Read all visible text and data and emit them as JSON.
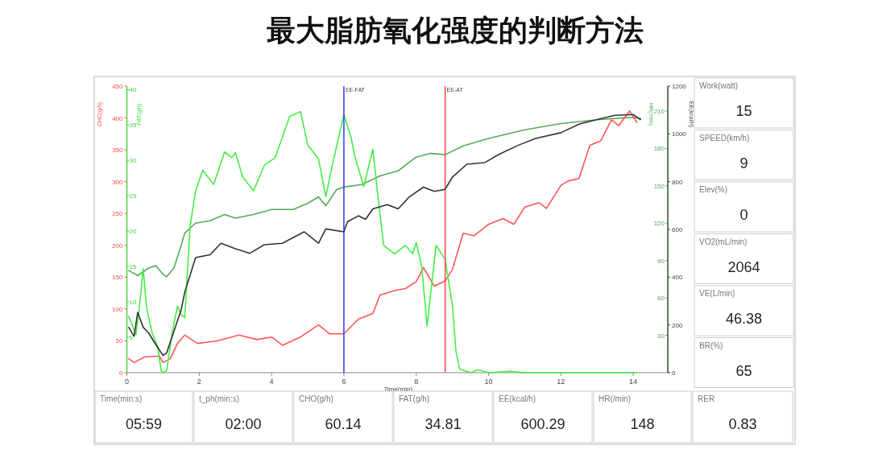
{
  "chart_data": [
    {
      "type": "line",
      "title": "最大脂肪氧化强度的判断方法",
      "xlabel": "Time(min)",
      "ylabel": "CHO(g/h)",
      "y2label": "FAT(g/h)",
      "y3label": "HR(/min)",
      "xlim": [
        0,
        15
      ],
      "xticks": [
        0,
        2,
        4,
        6,
        8,
        10,
        12,
        14
      ],
      "ylim": [
        0,
        450
      ],
      "yticks": [
        0,
        50,
        100,
        150,
        200,
        250,
        300,
        350,
        400,
        450
      ],
      "y2lim": [
        0,
        40.5
      ],
      "y2ticks": [
        5,
        10,
        15,
        20,
        25,
        30,
        35,
        40
      ],
      "y3lim": [
        0,
        230
      ],
      "y3ticks": [
        30,
        60,
        90,
        120,
        150,
        180,
        210
      ],
      "grid": false,
      "marker": "none",
      "line_style": "solid",
      "ref_lines": [
        {
          "axis": "x",
          "value": 6,
          "label": "EE-FAT",
          "color": "#3333ff"
        },
        {
          "axis": "x",
          "value": 8.8,
          "label": "EE-AT",
          "color": "#ff4444"
        }
      ],
      "series": [
        {
          "color": "#55aa55",
          "axis": "y3",
          "x": [
            0.05,
            0.3,
            0.6,
            0.8,
            1.0,
            1.1,
            1.3,
            1.5,
            1.6,
            1.9,
            2.3,
            2.7,
            3.0,
            3.5,
            4.0,
            4.6,
            5.0,
            5.3,
            5.5,
            5.8,
            6.0,
            6.5,
            7.0,
            7.5,
            8.0,
            8.4,
            8.8,
            9.3,
            10,
            11,
            12,
            13,
            14,
            14.2
          ],
          "values": [
            82,
            78,
            84,
            86,
            79,
            77,
            84,
            102,
            112,
            120,
            122,
            127,
            124,
            127,
            131,
            131,
            136,
            141,
            134,
            147,
            149,
            151,
            158,
            162,
            173,
            176,
            175,
            182,
            188,
            195,
            200,
            203,
            205,
            204
          ]
        },
        {
          "color": "#ff5555",
          "x": [
            0.05,
            0.2,
            0.5,
            0.9,
            1.0,
            1.2,
            1.4,
            1.6,
            1.95,
            2.5,
            3.1,
            3.6,
            4.0,
            4.3,
            4.8,
            5.3,
            5.6,
            6.0,
            6.4,
            6.8,
            7.0,
            7.4,
            7.7,
            8.0,
            8.2,
            8.5,
            8.8,
            9.0,
            9.3,
            9.6,
            10.0,
            10.4,
            10.7,
            11.0,
            11.4,
            11.6,
            12.0,
            12.2,
            12.5,
            12.8,
            13.1,
            13.4,
            13.6,
            13.9,
            14.1
          ],
          "values": [
            22,
            16,
            25,
            26,
            16,
            22,
            46,
            59,
            46,
            50,
            59,
            52,
            56,
            43,
            56,
            75,
            61,
            61,
            84,
            93,
            122,
            129,
            132,
            143,
            165,
            136,
            144,
            162,
            219,
            215,
            233,
            242,
            233,
            260,
            267,
            258,
            294,
            301,
            305,
            357,
            364,
            397,
            388,
            411,
            393
          ]
        },
        {
          "color": "#44ee44",
          "axis": "y2",
          "x": [
            0.05,
            0.25,
            0.35,
            0.45,
            0.55,
            0.7,
            0.85,
            0.95,
            1.0,
            1.1,
            1.25,
            1.4,
            1.5,
            1.6,
            1.75,
            1.9,
            2.1,
            2.4,
            2.7,
            2.9,
            3.0,
            3.2,
            3.5,
            3.8,
            4.1,
            4.5,
            4.8,
            5.0,
            5.3,
            5.5,
            5.7,
            6.0,
            6.2,
            6.3,
            6.55,
            6.8,
            6.95,
            7.1,
            7.4,
            7.7,
            7.9,
            8.0,
            8.15,
            8.3,
            8.55,
            8.8,
            9.0,
            9.1,
            9.2,
            9.5,
            9.7,
            10,
            10.6,
            11,
            14.1
          ],
          "values": [
            8.0,
            5.4,
            9.4,
            14.7,
            9.0,
            5.6,
            3.7,
            0.3,
            0,
            0.3,
            5.6,
            9.4,
            8.2,
            7.8,
            20.8,
            25.7,
            28.6,
            26.6,
            31.2,
            30.4,
            31.1,
            27.7,
            25.7,
            29.3,
            30.4,
            36.2,
            36.9,
            32.2,
            30.2,
            24.9,
            29.8,
            36.5,
            33.2,
            30.6,
            26.3,
            31.6,
            24.5,
            18,
            16.8,
            18,
            16.8,
            18.4,
            15.1,
            6.6,
            18,
            16,
            9.5,
            3.0,
            0.5,
            0,
            0.4,
            0,
            0.2,
            0,
            0
          ]
        }
      ]
    },
    {
      "type": "line",
      "ylabel": "EE(kcal/h)",
      "xlim": [
        0,
        15
      ],
      "ylim": [
        0,
        1200
      ],
      "yticks": [
        0,
        200,
        400,
        600,
        800,
        1000,
        1200
      ],
      "tick_labels": "y",
      "marker": "none",
      "line_style": "solid",
      "series": [
        {
          "color": "#333333",
          "x": [
            0.05,
            0.2,
            0.3,
            0.45,
            0.6,
            0.8,
            1.0,
            1.1,
            1.3,
            1.5,
            1.6,
            1.9,
            2.3,
            2.6,
            3.0,
            3.4,
            3.8,
            4.3,
            4.9,
            5.3,
            5.5,
            6.0,
            6.1,
            6.4,
            6.6,
            6.8,
            7.2,
            7.5,
            7.8,
            8.2,
            8.5,
            8.8,
            9.0,
            9.4,
            9.9,
            10.3,
            10.8,
            11.3,
            12,
            12.5,
            13,
            13.5,
            14,
            14.2
          ],
          "values": [
            190,
            152,
            253,
            190,
            167,
            118,
            72,
            83,
            173,
            263,
            337,
            482,
            494,
            542,
            519,
            500,
            536,
            542,
            590,
            542,
            602,
            590,
            632,
            657,
            642,
            686,
            704,
            686,
            735,
            777,
            759,
            768,
            819,
            873,
            880,
            915,
            951,
            981,
            1005,
            1041,
            1060,
            1078,
            1081,
            1060
          ]
        }
      ]
    },
    {
      "type": "other",
      "annotations": [
        "Work(watt)",
        "15",
        "SPEED(km/h)",
        "9",
        "Elev(%)",
        "0",
        "VO2(mL/min)",
        "2064",
        "VE(L/min)",
        "46.38",
        "BR(%)",
        "65",
        "Time(min:s)",
        "05:59",
        "t_ph(min:s)",
        "02:00",
        "CHO(g/h)",
        "60.14",
        "FAT(g/h)",
        "34.81",
        "EE(kcal/h)",
        "600.29",
        "HR(/min)",
        "148",
        "RER",
        "0.83"
      ]
    }
  ]
}
